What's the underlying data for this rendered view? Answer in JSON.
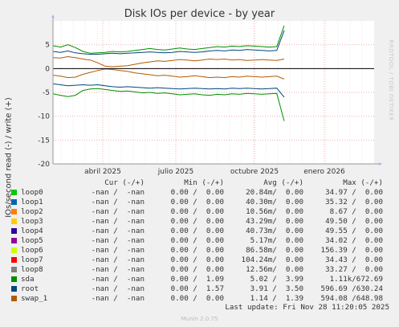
{
  "title": "Disk IOs per device - by year",
  "ylabel": "IOs/second read (-) / write (+)",
  "watermark": "RRDTOOL / TOBI OETIKER",
  "version": "Munin 2.0.75",
  "last_update": "Last update: Fri Nov 28 11:20:05 2025",
  "legend_headers": {
    "cur": "Cur (-/+)",
    "min": "Min (-/+)",
    "avg": "Avg (-/+)",
    "max": "Max (-/+)"
  },
  "legend": [
    {
      "name": "loop0",
      "color": "#00cc00",
      "cur": "-nan /  -nan",
      "min": "0.00 /  0.00",
      "avg": "20.84m/  0.00",
      "max": "34.97 /  0.00"
    },
    {
      "name": "loop1",
      "color": "#0066b3",
      "cur": "-nan /  -nan",
      "min": "0.00 /  0.00",
      "avg": "40.30m/  0.00",
      "max": "35.32 /  0.00"
    },
    {
      "name": "loop2",
      "color": "#ff8000",
      "cur": "-nan /  -nan",
      "min": "0.00 /  0.00",
      "avg": "10.56m/  0.00",
      "max": "8.67 /  0.00"
    },
    {
      "name": "loop3",
      "color": "#ffcc00",
      "cur": "-nan /  -nan",
      "min": "0.00 /  0.00",
      "avg": "43.29m/  0.00",
      "max": "49.50 /  0.00"
    },
    {
      "name": "loop4",
      "color": "#330099",
      "cur": "-nan /  -nan",
      "min": "0.00 /  0.00",
      "avg": "40.73m/  0.00",
      "max": "49.55 /  0.00"
    },
    {
      "name": "loop5",
      "color": "#990099",
      "cur": "-nan /  -nan",
      "min": "0.00 /  0.00",
      "avg": "5.17m/  0.00",
      "max": "34.02 /  0.00"
    },
    {
      "name": "loop6",
      "color": "#ccff00",
      "cur": "-nan /  -nan",
      "min": "0.00 /  0.00",
      "avg": "86.58m/  0.00",
      "max": "156.39 /  0.00"
    },
    {
      "name": "loop7",
      "color": "#ff0000",
      "cur": "-nan /  -nan",
      "min": "0.00 /  0.00",
      "avg": "104.24m/  0.00",
      "max": "34.43 /  0.00"
    },
    {
      "name": "loop8",
      "color": "#808080",
      "cur": "-nan /  -nan",
      "min": "0.00 /  0.00",
      "avg": "12.56m/  0.00",
      "max": "33.27 /  0.00"
    },
    {
      "name": "sda",
      "color": "#008f00",
      "cur": "-nan /  -nan",
      "min": "0.00 /  1.09",
      "avg": "5.02 /  3.99",
      "max": "1.11k/672.69"
    },
    {
      "name": "root",
      "color": "#00487d",
      "cur": "-nan /  -nan",
      "min": "0.00 /  1.57",
      "avg": "3.91 /  3.50",
      "max": "596.69 /630.24"
    },
    {
      "name": "swap_1",
      "color": "#b35a00",
      "cur": "-nan /  -nan",
      "min": "0.00 /  0.00",
      "avg": "1.14 /  1.39",
      "max": "594.08 /648.98"
    }
  ],
  "chart_data": {
    "type": "line",
    "title": "Disk IOs per device - by year",
    "ylabel": "IOs/second read (-) / write (+)",
    "ylim": [
      -20,
      10
    ],
    "yticks": [
      5,
      0,
      -5,
      -10,
      -15,
      -20
    ],
    "x_tick_labels": [
      "abril 2025",
      "julio 2025",
      "octubre 2025",
      "enero 2026"
    ],
    "grid": true,
    "series": [
      {
        "name": "sda",
        "color": "#008f00",
        "write": [
          4.8,
          4.5,
          5.0,
          4.4,
          3.6,
          3.2,
          3.3,
          3.4,
          3.6,
          3.5,
          3.6,
          3.8,
          4.0,
          4.2,
          4.0,
          3.9,
          4.1,
          4.3,
          4.1,
          4.0,
          4.2,
          4.4,
          4.6,
          4.5,
          4.7,
          4.6,
          4.8,
          4.7,
          4.6,
          4.5,
          4.6,
          9.0
        ],
        "read": [
          -5.3,
          -5.6,
          -5.9,
          -5.6,
          -4.6,
          -4.3,
          -4.2,
          -4.4,
          -4.6,
          -4.8,
          -4.7,
          -4.9,
          -5.1,
          -5.0,
          -5.2,
          -5.1,
          -5.3,
          -5.5,
          -5.4,
          -5.3,
          -5.5,
          -5.6,
          -5.4,
          -5.5,
          -5.3,
          -5.4,
          -5.2,
          -5.3,
          -5.4,
          -5.3,
          -5.2,
          -11.0
        ]
      },
      {
        "name": "root",
        "color": "#00487d",
        "write": [
          3.6,
          3.4,
          3.7,
          3.3,
          3.1,
          3.0,
          3.0,
          3.1,
          3.2,
          3.1,
          3.2,
          3.3,
          3.4,
          3.5,
          3.4,
          3.3,
          3.4,
          3.6,
          3.5,
          3.4,
          3.5,
          3.7,
          3.8,
          3.7,
          3.9,
          3.8,
          4.0,
          3.9,
          3.8,
          3.7,
          3.8,
          8.0
        ],
        "read": [
          -3.2,
          -3.4,
          -3.6,
          -3.5,
          -3.4,
          -3.5,
          -3.4,
          -3.6,
          -3.8,
          -3.9,
          -3.8,
          -3.9,
          -4.0,
          -4.1,
          -4.0,
          -4.1,
          -4.2,
          -4.3,
          -4.2,
          -4.1,
          -4.2,
          -4.3,
          -4.2,
          -4.3,
          -4.1,
          -4.2,
          -4.1,
          -4.2,
          -4.3,
          -4.2,
          -4.1,
          -6.0
        ]
      },
      {
        "name": "swap_1",
        "color": "#b35a00",
        "write": [
          2.3,
          2.2,
          2.5,
          2.3,
          2.0,
          1.8,
          1.2,
          0.5,
          0.4,
          0.5,
          0.6,
          0.9,
          1.2,
          1.4,
          1.6,
          1.5,
          1.7,
          1.9,
          1.8,
          1.6,
          1.8,
          2.0,
          1.9,
          2.0,
          1.8,
          1.9,
          1.7,
          1.8,
          1.9,
          1.8,
          1.7,
          2.0
        ],
        "read": [
          -1.4,
          -1.6,
          -1.9,
          -1.8,
          -1.2,
          -0.8,
          -0.4,
          -0.1,
          -0.2,
          -0.4,
          -0.6,
          -0.9,
          -1.1,
          -1.3,
          -1.5,
          -1.4,
          -1.6,
          -1.8,
          -1.7,
          -1.5,
          -1.7,
          -1.9,
          -1.8,
          -1.9,
          -1.7,
          -1.8,
          -1.6,
          -1.7,
          -1.8,
          -1.7,
          -1.6,
          -2.2
        ]
      }
    ]
  }
}
